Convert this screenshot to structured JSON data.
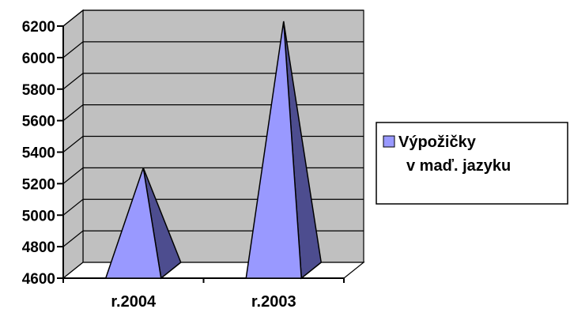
{
  "chart_data": {
    "type": "bar",
    "bar_shape": "pyramid-3d",
    "categories": [
      "r.2004",
      "r.2003"
    ],
    "series": [
      {
        "name": "Výpožičky v maď. jazyku",
        "values": [
          5250,
          6180
        ]
      }
    ],
    "ylim": [
      4600,
      6200
    ],
    "y_ticks": [
      4600,
      4800,
      5000,
      5200,
      5400,
      5600,
      5800,
      6000,
      6200
    ],
    "grid": true,
    "legend_position": "right",
    "colors": {
      "plot_wall": "#c0c0c0",
      "floor": "#ffffff",
      "pyramid_front": "#9999ff",
      "pyramid_side": "#4d4d8f",
      "outline": "#000000"
    }
  },
  "legend": {
    "lines": [
      "Výpožičky",
      "v maď. jazyku"
    ]
  }
}
